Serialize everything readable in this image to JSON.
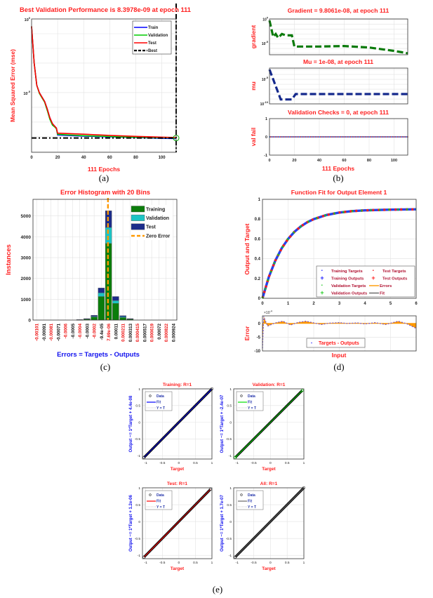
{
  "captions": [
    "(a)",
    "(b)",
    "(c)",
    "(d)",
    "(e)"
  ],
  "colors": {
    "title": "#ff2020",
    "label_blue": "#1010ee",
    "train": "#0000ff",
    "validation": "#00cc00",
    "test": "#ff0000",
    "hist_train": "#0b7d0b",
    "hist_val": "#1cc4c4",
    "hist_test": "#1c2c8a",
    "zero": "#ff9900",
    "gradient": "#0a7a0a",
    "mu": "#14288c"
  },
  "chart_data": [
    {
      "id": "performance",
      "type": "line",
      "yscale": "log",
      "title": "Best Validation Performance is 8.3978e-09 at epoch 111",
      "xlabel": "111 Epochs",
      "ylabel": "Mean Squared Error  (mse)",
      "xlim": [
        0,
        111
      ],
      "ylim_log10": [
        -9.05,
        0
      ],
      "xticks": [
        0,
        20,
        40,
        60,
        80,
        100
      ],
      "yticks": [
        {
          "base": "10",
          "exp": "0",
          "log10": 0
        },
        {
          "base": "10",
          "exp": "-5",
          "log10": -5
        }
      ],
      "series": [
        {
          "name": "Train",
          "color": "#0000ff",
          "x": [
            0,
            2,
            4,
            6,
            8,
            10,
            12,
            14,
            16,
            18,
            19,
            20,
            40,
            60,
            80,
            100,
            111
          ],
          "log10_y": [
            -0.5,
            -3,
            -4.5,
            -5,
            -5.3,
            -5.6,
            -6.1,
            -6.7,
            -7.1,
            -7.3,
            -7.4,
            -7.88,
            -7.95,
            -8.0,
            -8.05,
            -8.1,
            -8.12
          ]
        },
        {
          "name": "Validation",
          "color": "#00cc00",
          "x": [
            0,
            2,
            4,
            6,
            8,
            10,
            12,
            14,
            16,
            18,
            19,
            20,
            40,
            60,
            80,
            100,
            111
          ],
          "log10_y": [
            -0.5,
            -3,
            -4.5,
            -5.05,
            -5.35,
            -5.65,
            -6.2,
            -6.8,
            -7.2,
            -7.35,
            -7.45,
            -7.83,
            -7.92,
            -7.98,
            -8.03,
            -8.06,
            -8.08
          ]
        },
        {
          "name": "Test",
          "color": "#ff0000",
          "x": [
            0,
            2,
            4,
            6,
            8,
            10,
            12,
            14,
            16,
            18,
            19,
            20,
            40,
            60,
            80,
            100,
            111
          ],
          "log10_y": [
            -0.5,
            -3,
            -4.5,
            -5,
            -5.3,
            -5.6,
            -6.1,
            -6.7,
            -7.1,
            -7.3,
            -7.4,
            -7.75,
            -7.82,
            -7.9,
            -7.97,
            -8.02,
            -8.05
          ]
        }
      ],
      "best": {
        "name": "Best",
        "epoch": 111,
        "log10_value": -8.08
      },
      "legend": [
        "Train",
        "Validation",
        "Test",
        "Best"
      ],
      "legend_position": "top-right"
    },
    {
      "id": "training_state",
      "type": "line",
      "xlabel": "111 Epochs",
      "xlim": [
        0,
        111
      ],
      "xticks": [
        0,
        20,
        40,
        60,
        80,
        100
      ],
      "panels": [
        {
          "title": "Gradient = 9.8061e-08, at epoch 111",
          "ylabel": "gradient",
          "yscale": "log",
          "ylim_log10": [
            -7.3,
            0.1
          ],
          "yticks": [
            {
              "base": "10",
              "exp": "0",
              "log10": 0
            },
            {
              "base": "10",
              "exp": "-5",
              "log10": -5
            }
          ],
          "x": [
            0,
            3,
            5,
            7,
            10,
            13,
            18,
            20,
            40,
            60,
            80,
            100,
            111
          ],
          "log10_y": [
            -0.2,
            -3.6,
            -3.0,
            -3.8,
            -3.0,
            -3.3,
            -3.3,
            -5.6,
            -5.6,
            -5.5,
            -5.8,
            -6.5,
            -7.0
          ]
        },
        {
          "title": "Mu = 1e-08, at epoch 111",
          "ylabel": "mu",
          "yscale": "log",
          "ylim_log10": [
            -10,
            -2.7
          ],
          "yticks": [
            {
              "base": "10",
              "exp": "-5",
              "log10": -5
            },
            {
              "base": "10",
              "exp": "-10",
              "log10": -10
            }
          ],
          "x": [
            0,
            3,
            9,
            18,
            21,
            111
          ],
          "log10_y": [
            -3,
            -5,
            -9.1,
            -9.1,
            -8,
            -8
          ]
        },
        {
          "title": "Validation Checks = 0, at epoch 111",
          "ylabel": "val fail",
          "yscale": "linear",
          "ylim": [
            -1,
            1
          ],
          "yticks": [
            1,
            0,
            -1
          ],
          "value_all_epochs": 0
        }
      ]
    },
    {
      "id": "error_histogram",
      "type": "bar",
      "stacked": true,
      "title": "Error Histogram with 20 Bins",
      "xlabel": "Errors = Targets - Outputs",
      "ylabel": "Instances",
      "ylim": [
        0,
        5800
      ],
      "yticks": [
        0,
        1000,
        2000,
        3000,
        4000,
        5000
      ],
      "categories": [
        "-0.00101",
        "-0.00091",
        "-0.00081",
        "-0.00071",
        "-0.0006",
        "-0.0005",
        "-0.0004",
        "-0.0003",
        "-0.0002",
        "-9.4e-05",
        "7.69e-06",
        "0.00011",
        "0.000211",
        "0.000313",
        "0.000415",
        "0.000517",
        "0.000619",
        "0.00072",
        "0.000822",
        "0.000924"
      ],
      "bin_centers": [
        -0.00101,
        -0.00091,
        -0.00081,
        -0.00071,
        -0.0006,
        -0.0005,
        -0.0004,
        -0.0003,
        -0.0002,
        -9.4e-05,
        7.69e-06,
        0.00011,
        0.000211,
        0.000313,
        0.000415,
        0.000517,
        0.000619,
        0.00072,
        0.000822,
        0.000924
      ],
      "series": [
        {
          "name": "Training",
          "values": [
            0,
            0,
            0,
            0,
            0,
            0,
            15,
            50,
            150,
            1130,
            3680,
            800,
            120,
            50,
            0,
            0,
            0,
            0,
            0,
            0
          ]
        },
        {
          "name": "Validation",
          "values": [
            0,
            0,
            0,
            0,
            0,
            0,
            3,
            10,
            30,
            180,
            770,
            140,
            40,
            10,
            0,
            0,
            0,
            0,
            0,
            0
          ]
        },
        {
          "name": "Test",
          "values": [
            0,
            0,
            0,
            0,
            0,
            0,
            2,
            10,
            50,
            230,
            800,
            190,
            50,
            10,
            0,
            0,
            0,
            0,
            0,
            0
          ]
        }
      ],
      "zero_error": {
        "name": "Zero Error",
        "value": 0
      },
      "legend_position": "top-right"
    },
    {
      "id": "function_fit",
      "type": "line",
      "title": "Function Fit for Output Element 1",
      "ylabel": "Output and Target",
      "xlim": [
        0,
        6
      ],
      "ylim": [
        0,
        1
      ],
      "xticks": [
        0,
        1,
        2,
        3,
        4,
        5,
        6
      ],
      "yticks": [
        0,
        0.2,
        0.4,
        0.6,
        0.8,
        1
      ],
      "x": [
        0,
        0.25,
        0.5,
        0.75,
        1,
        1.25,
        1.5,
        1.75,
        2,
        2.5,
        3,
        3.5,
        4,
        5,
        6
      ],
      "y": [
        0,
        0.216,
        0.381,
        0.506,
        0.6,
        0.672,
        0.727,
        0.769,
        0.8,
        0.842,
        0.867,
        0.881,
        0.889,
        0.896,
        0.899
      ],
      "legend": [
        "Training Targets",
        "Training Outputs",
        "Validation Targets",
        "Validation Outputs",
        "Test Targets",
        "Test Outputs",
        "Errors",
        "Fit"
      ],
      "error_panel": {
        "ylabel": "Error",
        "xlabel": "Input",
        "scale_label": "×10",
        "scale_exp": "-4",
        "ylim": [
          -10,
          2.75
        ],
        "yticks": [
          0,
          -5,
          -10
        ],
        "x": [
          0,
          0.05,
          0.2,
          0.5,
          0.8,
          1.1,
          1.4,
          1.7,
          2.0,
          2.3,
          2.6,
          3.0,
          3.3,
          3.7,
          4.0,
          4.4,
          4.8,
          5.3,
          5.6,
          6.0
        ],
        "y": [
          -9,
          2.5,
          -1,
          0.2,
          0.8,
          -0.6,
          0.4,
          0.8,
          0.2,
          -0.4,
          0.1,
          0.3,
          0,
          0.2,
          -0.2,
          0.3,
          -0.4,
          0.8,
          0,
          -1.8
        ],
        "legend": "Targets - Outputs"
      }
    },
    {
      "id": "regression",
      "type": "scatter",
      "xlabel": "Target",
      "xlim": [
        -1.1,
        1
      ],
      "ylim": [
        -1.1,
        1
      ],
      "ticks": [
        -1,
        -0.5,
        0,
        0.5,
        1
      ],
      "tick_labels": [
        "-1",
        "-0.5",
        "0",
        "0.5",
        "1"
      ],
      "legend": [
        "Data",
        "Fit",
        "Y = T"
      ],
      "plots": [
        {
          "title": "Training: R=1",
          "ylabel": "Output ~= 1*Target + 4.4e-08",
          "fit_color": "#0000ff",
          "range": [
            -1.05,
            1
          ]
        },
        {
          "title": "Validation: R=1",
          "ylabel": "Output ~= 1*Target + -2.4e-07",
          "fit_color": "#00dd00",
          "range": [
            -1.05,
            0.95
          ]
        },
        {
          "title": "Test: R=1",
          "ylabel": "Output ~= 1*Target + 1.2e-06",
          "fit_color": "#ff0000",
          "range": [
            -1.05,
            0.95
          ]
        },
        {
          "title": "All: R=1",
          "ylabel": "Output ~= 1*Target + 1.7e-07",
          "fit_color": "#666666",
          "range": [
            -1.05,
            1
          ]
        }
      ]
    }
  ]
}
